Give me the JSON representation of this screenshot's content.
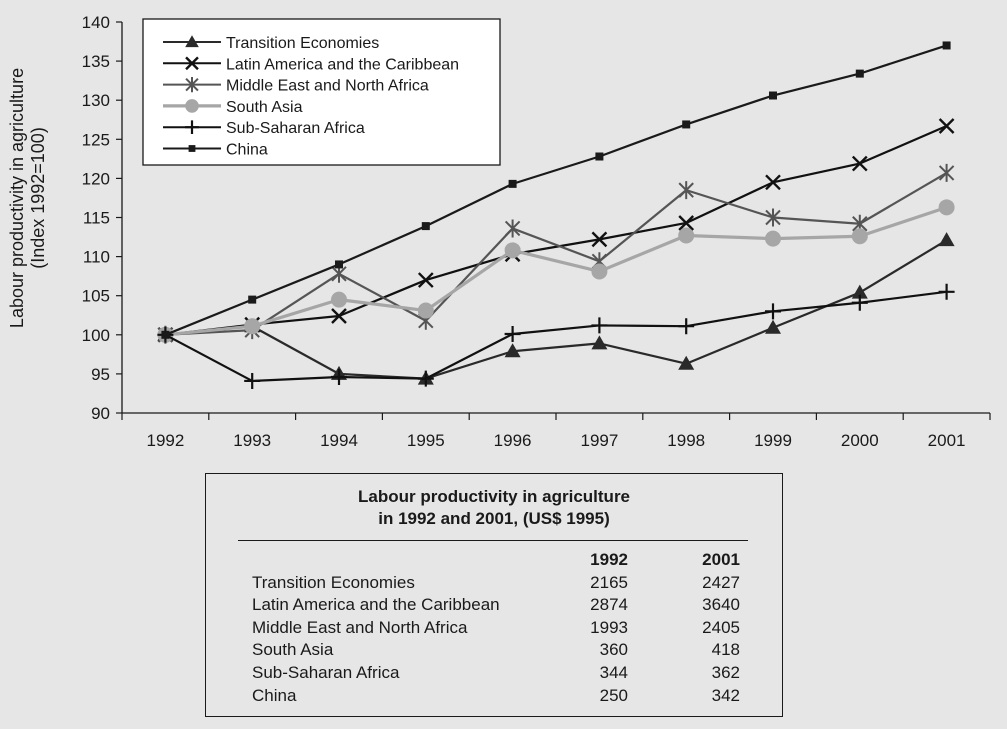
{
  "chart_data": {
    "type": "line",
    "title": "",
    "xlabel": "",
    "ylabel": "Labour productivity in agriculture (Index 1992=100)",
    "ylabel_lines": [
      "Labour productivity in agriculture",
      "(Index 1992=100)"
    ],
    "x": [
      "1992",
      "1993",
      "1994",
      "1995",
      "1996",
      "1997",
      "1998",
      "1999",
      "2000",
      "2001"
    ],
    "ylim": [
      90,
      140
    ],
    "yticks": [
      90,
      95,
      100,
      105,
      110,
      115,
      120,
      125,
      130,
      135,
      140
    ],
    "grid": false,
    "legend_position": "top-left",
    "series": [
      {
        "name": "Transition Economies",
        "color": "#2a2a2a",
        "marker": "triangle",
        "values": [
          100,
          101.1,
          95,
          94.4,
          97.9,
          98.9,
          96.3,
          100.9,
          105.4,
          112.1
        ]
      },
      {
        "name": "Latin America and the Caribbean",
        "color": "#111111",
        "marker": "x",
        "values": [
          100,
          101.3,
          102.4,
          107,
          110.3,
          112.2,
          114.3,
          119.5,
          121.9,
          126.7
        ]
      },
      {
        "name": "Middle East and North Africa",
        "color": "#555555",
        "marker": "asterisk",
        "values": [
          100,
          100.6,
          107.8,
          101.8,
          113.6,
          109.4,
          118.5,
          115,
          114.2,
          120.7
        ]
      },
      {
        "name": "South Asia",
        "color": "#a6a6a6",
        "marker": "circle",
        "values": [
          100,
          101.1,
          104.5,
          103.1,
          110.8,
          108.1,
          112.7,
          112.3,
          112.6,
          116.3
        ]
      },
      {
        "name": "Sub-Saharan Africa",
        "color": "#111111",
        "marker": "plus",
        "values": [
          100,
          94.1,
          94.6,
          94.4,
          100.1,
          101.2,
          101.1,
          103,
          104.1,
          105.5
        ]
      },
      {
        "name": "China",
        "color": "#1a1a1a",
        "marker": "square",
        "values": [
          100,
          104.5,
          109,
          113.9,
          119.3,
          122.8,
          126.9,
          130.6,
          133.4,
          137
        ]
      }
    ]
  },
  "table": {
    "title_line1": "Labour productivity in agriculture",
    "title_line2": "in 1992 and 2001, (US$ 1995)",
    "col_1992": "1992",
    "col_2001": "2001",
    "rows": [
      {
        "name": "Transition Economies",
        "v1992": "2165",
        "v2001": "2427"
      },
      {
        "name": "Latin America and the Caribbean",
        "v1992": "2874",
        "v2001": "3640"
      },
      {
        "name": "Middle East and North Africa",
        "v1992": "1993",
        "v2001": "2405"
      },
      {
        "name": "South Asia",
        "v1992": "360",
        "v2001": "418"
      },
      {
        "name": "Sub-Saharan Africa",
        "v1992": "344",
        "v2001": "362"
      },
      {
        "name": "China",
        "v1992": "250",
        "v2001": "342"
      }
    ]
  }
}
